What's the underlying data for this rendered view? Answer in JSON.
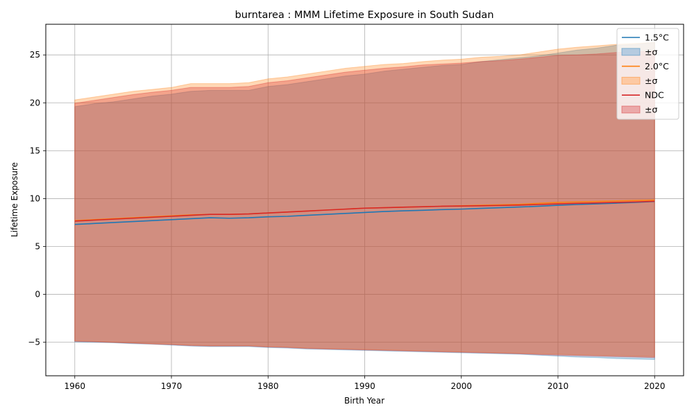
{
  "chart_data": {
    "type": "area",
    "title": "burntarea : MMM Lifetime Exposure in South Sudan",
    "xlabel": "Birth Year",
    "ylabel": "Lifetime Exposure",
    "xlim": [
      1957,
      2023
    ],
    "ylim": [
      -8.5,
      28.2
    ],
    "xticks": [
      1960,
      1970,
      1980,
      1990,
      2000,
      2010,
      2020
    ],
    "yticks": [
      -5,
      0,
      5,
      10,
      15,
      20,
      25
    ],
    "ytick_labels": [
      "−5",
      "0",
      "5",
      "10",
      "15",
      "20",
      "25"
    ],
    "grid": true,
    "legend_position": "top-right",
    "x": [
      1960,
      1962,
      1964,
      1966,
      1968,
      1970,
      1972,
      1974,
      1976,
      1978,
      1980,
      1982,
      1984,
      1986,
      1988,
      1990,
      1992,
      1994,
      1996,
      1998,
      2000,
      2002,
      2004,
      2006,
      2008,
      2010,
      2012,
      2014,
      2016,
      2018,
      2020
    ],
    "series": [
      {
        "name": "1.5°C",
        "band_label": "±σ",
        "color": "#1f77b4",
        "fill": "#b5cbe0",
        "mean": [
          7.3,
          7.4,
          7.5,
          7.6,
          7.7,
          7.8,
          7.9,
          8.0,
          7.95,
          8.0,
          8.1,
          8.15,
          8.25,
          8.35,
          8.45,
          8.55,
          8.65,
          8.72,
          8.78,
          8.85,
          8.9,
          8.98,
          9.05,
          9.12,
          9.2,
          9.3,
          9.38,
          9.45,
          9.52,
          9.6,
          9.7
        ],
        "upper": [
          19.6,
          19.9,
          20.1,
          20.4,
          20.7,
          20.9,
          21.2,
          21.3,
          21.3,
          21.3,
          21.7,
          21.9,
          22.2,
          22.5,
          22.8,
          23.0,
          23.3,
          23.5,
          23.7,
          23.9,
          24.0,
          24.3,
          24.5,
          24.7,
          24.9,
          25.2,
          25.5,
          25.7,
          26.0,
          26.1,
          26.3
        ],
        "lower": [
          -4.95,
          -5.0,
          -5.05,
          -5.15,
          -5.2,
          -5.3,
          -5.4,
          -5.45,
          -5.45,
          -5.45,
          -5.55,
          -5.6,
          -5.7,
          -5.75,
          -5.8,
          -5.85,
          -5.9,
          -5.95,
          -6.0,
          -6.05,
          -6.1,
          -6.15,
          -6.2,
          -6.25,
          -6.35,
          -6.45,
          -6.55,
          -6.6,
          -6.7,
          -6.75,
          -6.8
        ]
      },
      {
        "name": "2.0°C",
        "band_label": "±σ",
        "color": "#ff7f0e",
        "fill": "#fdc9a3",
        "mean": [
          7.7,
          7.8,
          7.9,
          8.0,
          8.1,
          8.2,
          8.3,
          8.35,
          8.35,
          8.4,
          8.5,
          8.6,
          8.7,
          8.8,
          8.9,
          9.0,
          9.05,
          9.1,
          9.15,
          9.2,
          9.25,
          9.3,
          9.35,
          9.4,
          9.5,
          9.6,
          9.65,
          9.7,
          9.75,
          9.8,
          9.85
        ],
        "upper": [
          20.3,
          20.6,
          20.9,
          21.2,
          21.4,
          21.6,
          22.0,
          22.0,
          22.0,
          22.1,
          22.5,
          22.7,
          23.0,
          23.3,
          23.6,
          23.8,
          24.0,
          24.1,
          24.3,
          24.45,
          24.55,
          24.75,
          24.85,
          25.0,
          25.3,
          25.6,
          25.8,
          25.95,
          26.1,
          26.2,
          26.3
        ],
        "lower": [
          -4.85,
          -4.9,
          -5.0,
          -5.05,
          -5.15,
          -5.2,
          -5.3,
          -5.35,
          -5.35,
          -5.35,
          -5.45,
          -5.5,
          -5.6,
          -5.65,
          -5.7,
          -5.75,
          -5.8,
          -5.85,
          -5.9,
          -5.95,
          -6.0,
          -6.05,
          -6.1,
          -6.15,
          -6.2,
          -6.25,
          -6.3,
          -6.35,
          -6.4,
          -6.45,
          -6.5
        ]
      },
      {
        "name": "NDC",
        "band_label": "±σ",
        "color": "#d62728",
        "fill": "#eba9a9",
        "mean": [
          7.65,
          7.75,
          7.85,
          7.95,
          8.05,
          8.15,
          8.25,
          8.35,
          8.35,
          8.4,
          8.5,
          8.6,
          8.7,
          8.8,
          8.9,
          9.0,
          9.05,
          9.1,
          9.15,
          9.2,
          9.22,
          9.25,
          9.28,
          9.32,
          9.38,
          9.45,
          9.5,
          9.55,
          9.6,
          9.65,
          9.72
        ],
        "upper": [
          19.95,
          20.25,
          20.55,
          20.85,
          21.1,
          21.3,
          21.6,
          21.6,
          21.6,
          21.7,
          22.1,
          22.3,
          22.6,
          22.9,
          23.2,
          23.4,
          23.6,
          23.75,
          23.95,
          24.05,
          24.15,
          24.3,
          24.4,
          24.55,
          24.75,
          24.95,
          25.0,
          25.1,
          25.25,
          25.3,
          25.4
        ],
        "lower": [
          -4.9,
          -4.95,
          -5.02,
          -5.1,
          -5.18,
          -5.25,
          -5.35,
          -5.4,
          -5.4,
          -5.4,
          -5.5,
          -5.55,
          -5.65,
          -5.7,
          -5.75,
          -5.8,
          -5.85,
          -5.9,
          -5.95,
          -6.0,
          -6.05,
          -6.1,
          -6.15,
          -6.2,
          -6.28,
          -6.35,
          -6.4,
          -6.45,
          -6.5,
          -6.55,
          -6.6
        ]
      }
    ]
  }
}
